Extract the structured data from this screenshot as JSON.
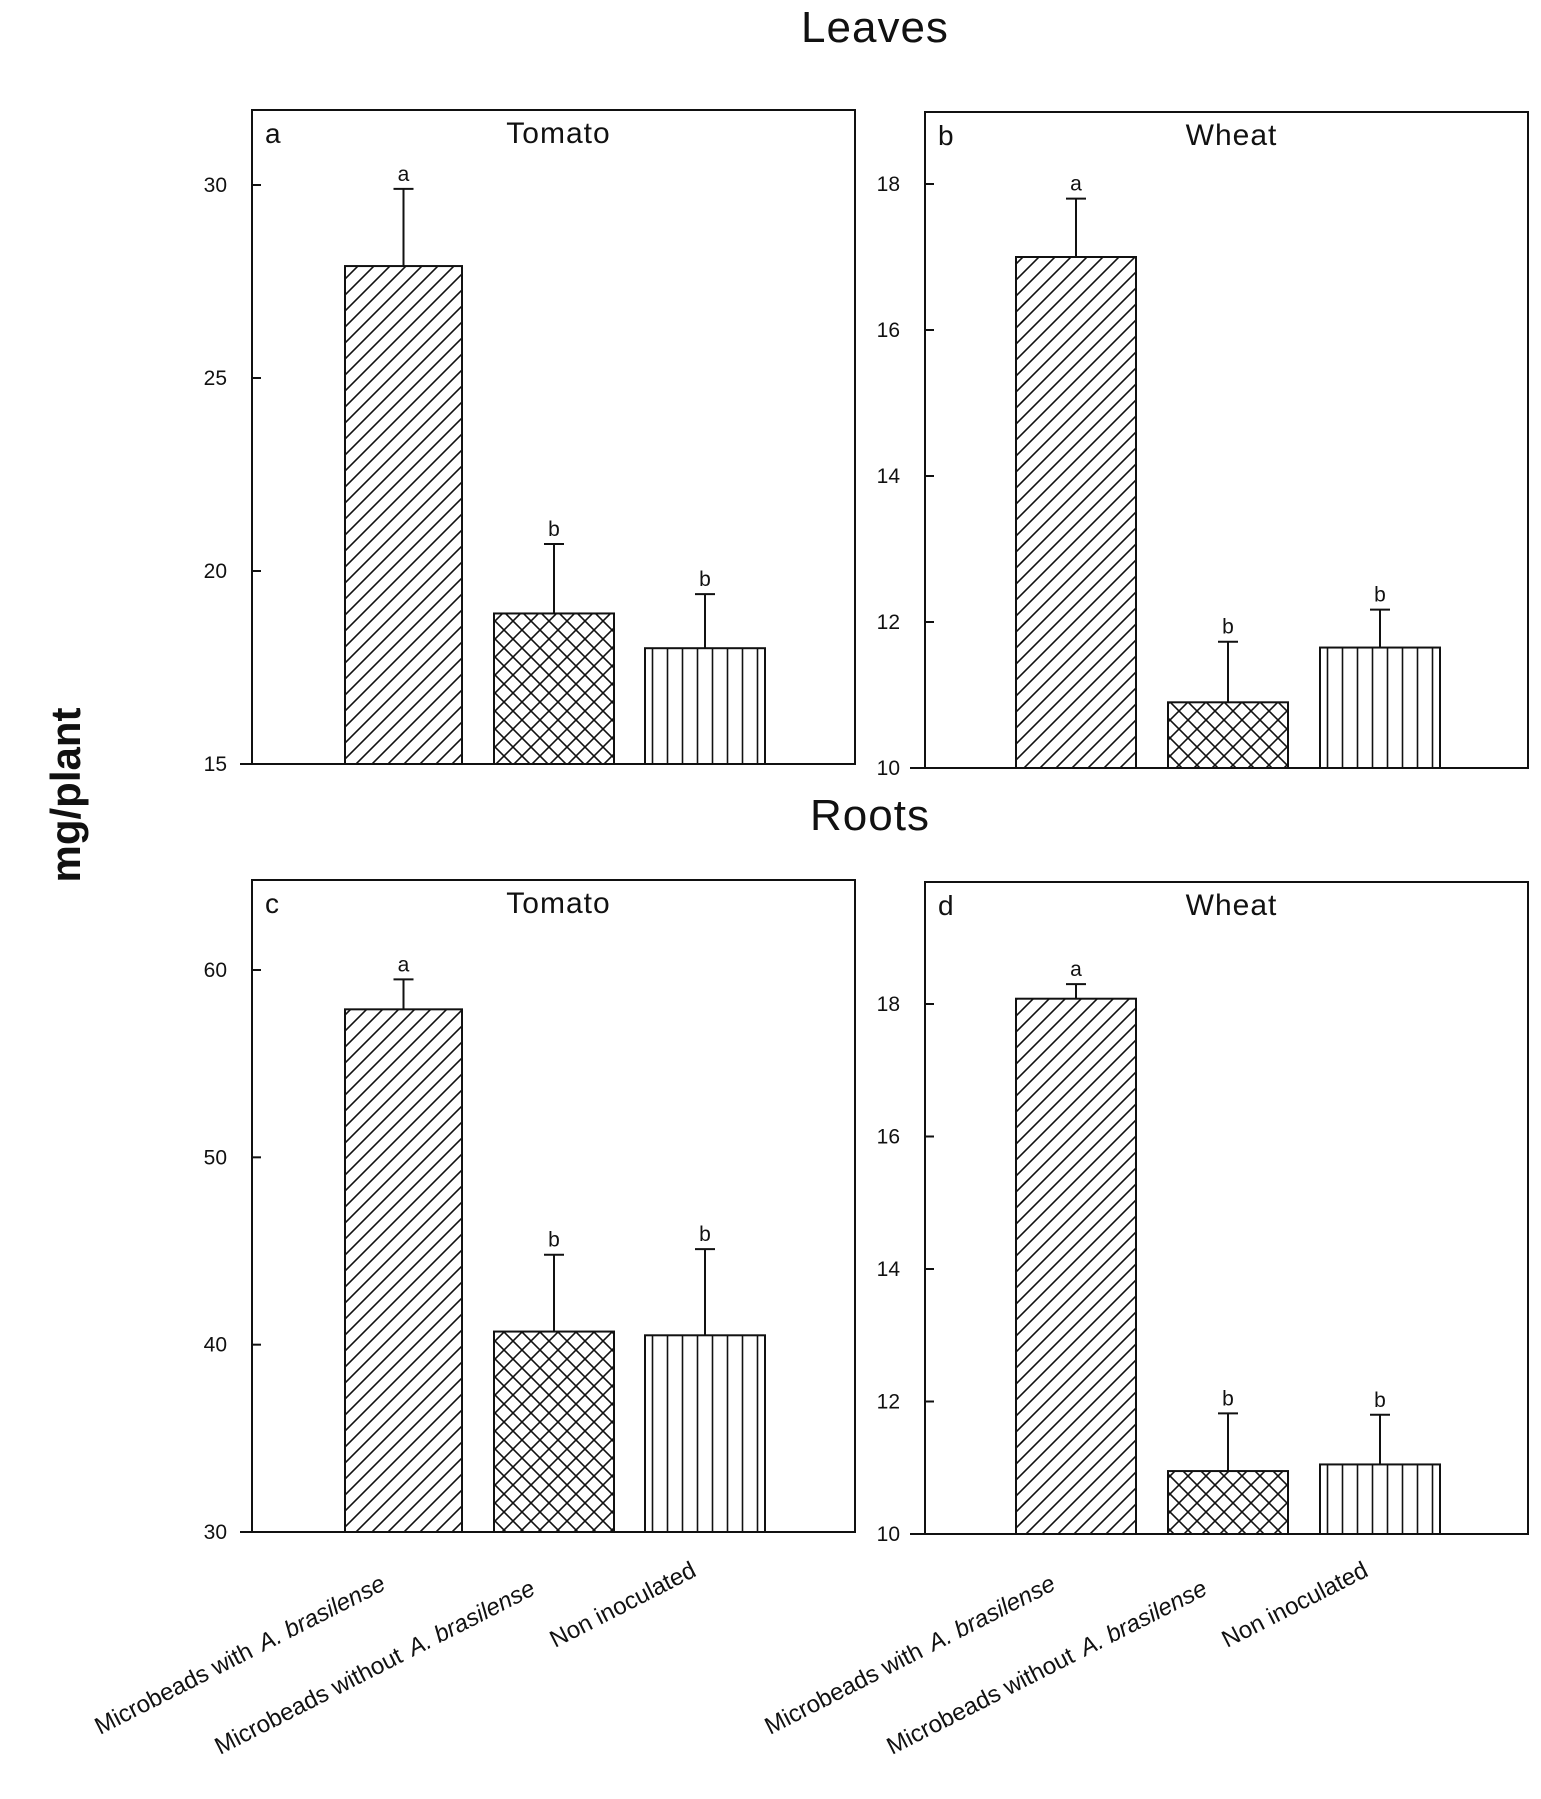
{
  "row_titles": {
    "top": "Leaves",
    "bottom": "Roots"
  },
  "y_axis_label": "mg/plant",
  "category_labels": {
    "with_part1": "Microbeads with",
    "with_part2": "A. brasilense",
    "without_part1": "Microbeads without",
    "without_part2": "A. brasilense",
    "non": "Non inoculated"
  },
  "chart_data": [
    {
      "type": "bar",
      "letter": "a",
      "title": "Tomato",
      "categories": [
        "Microbeads with A. brasilense",
        "Microbeads without A. brasilense",
        "Non inoculated"
      ],
      "values": [
        27.9,
        18.9,
        18.0
      ],
      "errors": [
        2.0,
        1.8,
        1.4
      ],
      "significance": [
        "a",
        "b",
        "b"
      ],
      "patterns": [
        "diag",
        "cross",
        "vert"
      ],
      "ylim": [
        15,
        32
      ],
      "yticks": [
        15,
        20,
        25,
        30
      ]
    },
    {
      "type": "bar",
      "letter": "b",
      "title": "Wheat",
      "categories": [
        "Microbeads with A. brasilense",
        "Microbeads without A. brasilense",
        "Non inoculated"
      ],
      "values": [
        17.0,
        10.9,
        11.65
      ],
      "errors": [
        0.8,
        0.83,
        0.52
      ],
      "significance": [
        "a",
        "b",
        "b"
      ],
      "patterns": [
        "diag",
        "cross",
        "vert"
      ],
      "ylim": [
        10,
        19
      ],
      "yticks": [
        10,
        12,
        14,
        16,
        18
      ]
    },
    {
      "type": "bar",
      "letter": "c",
      "title": "Tomato",
      "categories": [
        "Microbeads with A. brasilense",
        "Microbeads without A. brasilense",
        "Non inoculated"
      ],
      "values": [
        57.9,
        40.7,
        40.5
      ],
      "errors": [
        1.6,
        4.1,
        4.6
      ],
      "significance": [
        "a",
        "b",
        "b"
      ],
      "patterns": [
        "diag",
        "cross",
        "vert"
      ],
      "ylim": [
        30,
        65
      ],
      "yticks": [
        30,
        40,
        50,
        60
      ]
    },
    {
      "type": "bar",
      "letter": "d",
      "title": "Wheat",
      "categories": [
        "Microbeads with A. brasilense",
        "Microbeads without A. brasilense",
        "Non inoculated"
      ],
      "values": [
        18.08,
        10.95,
        11.05
      ],
      "errors": [
        0.22,
        0.87,
        0.75
      ],
      "significance": [
        "a",
        "b",
        "b"
      ],
      "patterns": [
        "diag",
        "cross",
        "vert"
      ],
      "ylim": [
        10,
        19
      ],
      "yticks": [
        10,
        12,
        14,
        16,
        18
      ]
    }
  ]
}
